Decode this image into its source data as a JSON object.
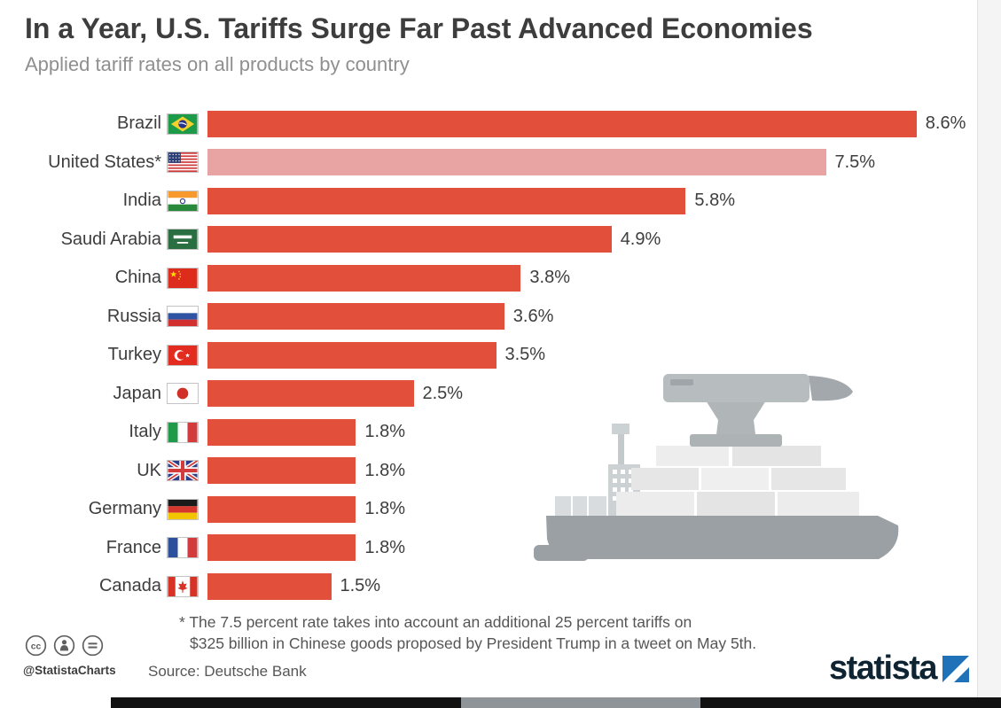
{
  "page": {
    "title": "In a Year, U.S. Tariffs Surge Far Past Advanced Economies",
    "subtitle": "Applied tariff rates on all products by country"
  },
  "chart_data": {
    "type": "bar",
    "orientation": "horizontal",
    "title": "In a Year, U.S. Tariffs Surge Far Past Advanced Economies",
    "subtitle": "Applied tariff rates on all products by country",
    "unit": "%",
    "xlim": [
      0,
      9
    ],
    "grid": false,
    "bar_color": "#e2503c",
    "highlight_color": "#e7a4a2",
    "highlighted_index": 1,
    "categories": [
      "Brazil",
      "United States*",
      "India",
      "Saudi Arabia",
      "China",
      "Russia",
      "Turkey",
      "Japan",
      "Italy",
      "UK",
      "Germany",
      "France",
      "Canada"
    ],
    "values": [
      8.6,
      7.5,
      5.8,
      4.9,
      3.8,
      3.6,
      3.5,
      2.5,
      1.8,
      1.8,
      1.8,
      1.8,
      1.5
    ],
    "value_labels": [
      "8.6%",
      "7.5%",
      "5.8%",
      "4.9%",
      "3.8%",
      "3.6%",
      "3.5%",
      "2.5%",
      "1.8%",
      "1.8%",
      "1.8%",
      "1.8%",
      "1.5%"
    ],
    "flags": [
      "brazil",
      "united-states",
      "india",
      "saudi-arabia",
      "china",
      "russia",
      "turkey",
      "japan",
      "italy",
      "uk",
      "germany",
      "france",
      "canada"
    ]
  },
  "footnote": {
    "line1": "* The 7.5 percent rate takes into account an additional 25 percent tariffs on",
    "line2": "$325 billion in Chinese goods proposed by President Trump in a tweet on May 5th."
  },
  "source": "Source: Deutsche Bank",
  "footer": {
    "credit_handle": "@StatistaCharts",
    "license_icons": [
      "cc-icon",
      "attribution-icon",
      "no-derivatives-icon"
    ],
    "license_cc_label": "cc",
    "brand": "statista",
    "brand_color": "#0e2433",
    "brand_square_color": "#1f72b8"
  },
  "illustration": "gray cargo ship carrying containers with a large anvil on top"
}
